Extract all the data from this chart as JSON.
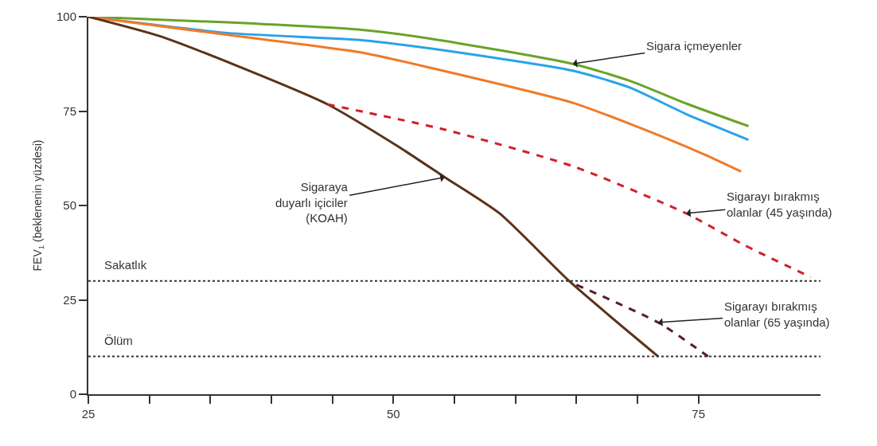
{
  "chart_data": {
    "type": "line",
    "ylabel": "FEV$_{1}$ (beklenenin yüzdesi)",
    "xlim": [
      25,
      85
    ],
    "ylim": [
      0,
      100
    ],
    "xticks": [
      25,
      {
        "value": 30,
        "label": null
      },
      {
        "value": 35,
        "label": null
      },
      {
        "value": 40,
        "label": null
      },
      {
        "value": 45,
        "label": null
      },
      50,
      {
        "value": 55,
        "label": null
      },
      {
        "value": 60,
        "label": null
      },
      {
        "value": 65,
        "label": null
      },
      {
        "value": 70,
        "label": null
      },
      75
    ],
    "yticks": [
      0,
      25,
      50,
      75,
      100
    ],
    "marker": "none",
    "series": [
      {
        "color": "#6aa329",
        "line_style": "solid",
        "x": [
          25,
          36.4,
          47.4,
          53,
          64.7,
          69.4,
          74,
          79.1
        ],
        "values": [
          100,
          98.5,
          96.5,
          94.2,
          87.5,
          83,
          77,
          71
        ]
      },
      {
        "color": "#2aa3e8",
        "line_style": "solid",
        "x": [
          25,
          36.4,
          47.4,
          53,
          64.7,
          69.4,
          74,
          79.1
        ],
        "values": [
          100,
          95.7,
          93.8,
          91.6,
          85.7,
          81.2,
          74.2,
          67.4
        ]
      },
      {
        "color": "#f07a28",
        "line_style": "solid",
        "x": [
          25,
          36.4,
          47.4,
          53,
          64.7,
          69.4,
          75.5,
          78.5
        ],
        "values": [
          100,
          95.2,
          90.5,
          86.5,
          77.2,
          71.6,
          63.5,
          59
        ]
      },
      {
        "color": "#5b3218",
        "line_style": "solid",
        "x": [
          25,
          30.8,
          37.1,
          44.6,
          50.4,
          54.2,
          58.7,
          64.5,
          71.7
        ],
        "values": [
          100,
          94.9,
          87.1,
          76.8,
          65.6,
          57.5,
          47.9,
          29.7,
          10
        ]
      },
      {
        "color": "#d0202c",
        "line_style": "dashed",
        "x": [
          44.6,
          54.2,
          64.7,
          74,
          78.7,
          84.2
        ],
        "values": [
          76.8,
          70.1,
          60.4,
          47.9,
          39.6,
          31
        ]
      },
      {
        "color": "#5a1a2a",
        "line_style": "dashed",
        "x": [
          65,
          71.7,
          75.8
        ],
        "values": [
          29,
          19,
          10
        ]
      }
    ],
    "ref_lines": [
      {
        "axis": "y",
        "value": 30,
        "label": "Sakatlık",
        "color": "#333333",
        "line_style": "dotted"
      },
      {
        "axis": "y",
        "value": 10,
        "label": "Ölüm",
        "color": "#333333",
        "line_style": "dotted"
      }
    ],
    "annotations": [
      {
        "text": "Sigara içmeyenler",
        "x": 64.7,
        "y": 87.5
      },
      {
        "text": "Sigaraya\nduyarlı içiciler\n(KOAH)",
        "x": 54.2,
        "y": 57.5
      },
      {
        "text": "Sigarayı bırakmış\nolanlar (45 yaşında)",
        "x": 74,
        "y": 47.9
      },
      {
        "text": "Sigarayı bırakmış\nolanlar (65 yaşında)",
        "x": 71.7,
        "y": 19
      }
    ]
  }
}
